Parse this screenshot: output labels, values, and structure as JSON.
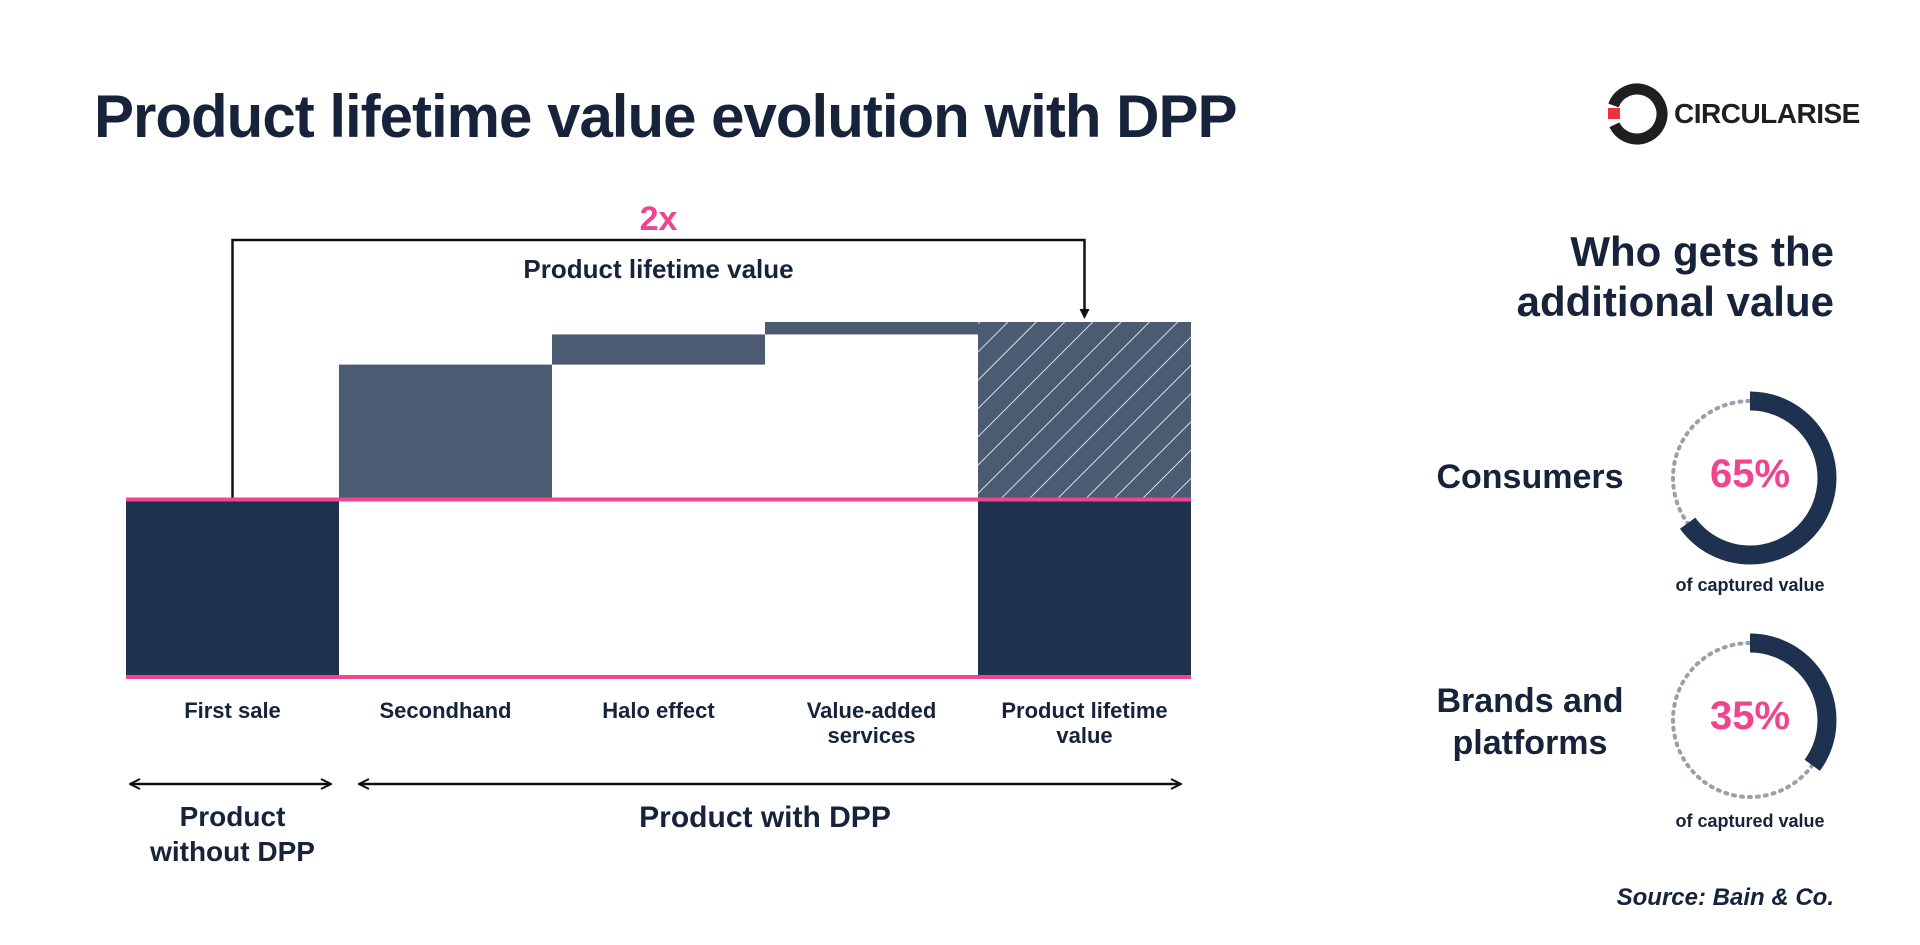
{
  "title": "Product lifetime value evolution with DPP",
  "logo": {
    "text": "CIRCULARISE"
  },
  "colors": {
    "navy": "#1e324f",
    "slate": "#4a5b72",
    "pink": "#f0448f",
    "text": "#16233a",
    "dotted": "#9aa0aa"
  },
  "chart_data": {
    "type": "waterfall",
    "unit": "relative value (first sale = 1)",
    "categories": [
      "First sale",
      "Secondhand",
      "Halo effect",
      "Value-added services",
      "Product lifetime value"
    ],
    "tick_labels": [
      [
        "First sale"
      ],
      [
        "Secondhand"
      ],
      [
        "Halo effect"
      ],
      [
        "Value-added",
        "services"
      ],
      [
        "Product lifetime",
        "value"
      ]
    ],
    "bars": [
      {
        "name": "First sale",
        "kind": "base",
        "start": 0,
        "end": 1.0
      },
      {
        "name": "Secondhand",
        "kind": "increment",
        "start": 1.0,
        "end": 1.76
      },
      {
        "name": "Halo effect",
        "kind": "increment",
        "start": 1.76,
        "end": 1.93
      },
      {
        "name": "Value-added services",
        "kind": "increment",
        "start": 1.93,
        "end": 2.0
      },
      {
        "name": "Product lifetime value",
        "kind": "total",
        "start": 0,
        "end": 2.0,
        "base_part": 1.0
      }
    ],
    "ylim": [
      0,
      2.0
    ],
    "multiplier_label": "2x",
    "bracket_label": "Product lifetime value",
    "groups": [
      {
        "label_lines": [
          "Product",
          "without DPP"
        ]
      },
      {
        "label_lines": [
          "Product with DPP"
        ]
      }
    ]
  },
  "side_panel": {
    "heading_lines": [
      "Who gets the",
      "additional value"
    ],
    "segments": [
      {
        "label_lines": [
          "Consumers"
        ],
        "value": 65,
        "value_label": "65%",
        "sub_label": "of captured value"
      },
      {
        "label_lines": [
          "Brands and",
          "platforms"
        ],
        "value": 35,
        "value_label": "35%",
        "sub_label": "of captured value"
      }
    ]
  },
  "source": "Source: Bain & Co."
}
